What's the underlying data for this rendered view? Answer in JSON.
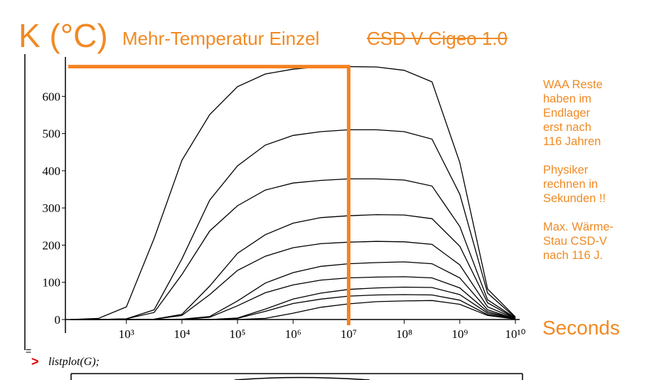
{
  "title": {
    "unit": "K (°C)",
    "main": "Mehr-Temperatur Einzel",
    "struck": "CSD V Cigeo 1.0"
  },
  "notes": [
    [
      "WAA Reste",
      "haben im",
      "Endlager",
      "erst nach",
      "116 Jahren"
    ],
    [
      "Physiker",
      "rechnen in",
      "Sekunden !!"
    ],
    [
      "Max. Wärme-",
      "Stau CSD-V",
      "nach 116 J."
    ]
  ],
  "x_unit": "Seconds",
  "command": {
    "prompt": ">",
    "text": "listplot(G);"
  },
  "chart_data": {
    "type": "line",
    "x_log": true,
    "line_color": "#000000",
    "x": [
      100,
      316.2,
      1000,
      3162,
      10000,
      31623,
      100000,
      316228,
      1000000,
      3162278,
      10000000,
      31622777,
      100000000,
      316227766,
      1000000000,
      3162277660,
      10000000000
    ],
    "series": [
      {
        "values": [
          0,
          3,
          34,
          218,
          428,
          551,
          626,
          660,
          673,
          680,
          680,
          679,
          670,
          639,
          422,
          82,
          7
        ]
      },
      {
        "values": [
          0,
          0,
          2,
          26,
          163,
          321,
          413,
          469,
          495,
          505,
          510,
          510,
          505,
          485,
          337,
          71,
          5
        ]
      },
      {
        "values": [
          0,
          0,
          2,
          19,
          121,
          238,
          306,
          348,
          367,
          374,
          378,
          378,
          375,
          359,
          250,
          53,
          4
        ]
      },
      {
        "values": [
          0,
          0,
          0,
          1,
          14,
          90,
          178,
          228,
          259,
          274,
          279,
          282,
          281,
          271,
          197,
          45,
          3
        ]
      },
      {
        "values": [
          0,
          0,
          0,
          1,
          11,
          67,
          132,
          170,
          193,
          204,
          208,
          210,
          209,
          202,
          147,
          34,
          3
        ]
      },
      {
        "values": [
          0,
          0,
          0,
          0,
          1,
          8,
          50,
          98,
          126,
          143,
          150,
          153,
          155,
          150,
          112,
          26,
          2
        ]
      },
      {
        "values": [
          0,
          0,
          0,
          0,
          0,
          6,
          37,
          72,
          93,
          106,
          112,
          114,
          115,
          112,
          85,
          21,
          2
        ]
      },
      {
        "values": [
          0,
          0,
          0,
          0,
          0,
          0,
          4,
          28,
          55,
          71,
          81,
          85,
          87,
          86,
          67,
          17,
          2
        ]
      },
      {
        "values": [
          0,
          0,
          0,
          0,
          0,
          0,
          3,
          22,
          43,
          55,
          63,
          66,
          67,
          66,
          52,
          13,
          1
        ]
      },
      {
        "values": [
          0,
          0,
          0,
          0,
          0,
          0,
          0,
          3,
          17,
          33,
          42,
          48,
          50,
          51,
          41,
          11,
          1
        ]
      }
    ],
    "xlim": [
      80,
      10000000000
    ],
    "ylim": [
      0,
      683
    ],
    "xticks": [
      {
        "value": 1000,
        "label": "10³"
      },
      {
        "value": 10000,
        "label": "10⁴"
      },
      {
        "value": 100000,
        "label": "10⁵"
      },
      {
        "value": 1000000,
        "label": "10⁶"
      },
      {
        "value": 10000000,
        "label": "10⁷"
      },
      {
        "value": 100000000,
        "label": "10⁸"
      },
      {
        "value": 1000000000,
        "label": "10⁹"
      },
      {
        "value": 10000000000,
        "label": "10¹⁰"
      }
    ],
    "yticks": [
      0,
      100,
      200,
      300,
      400,
      500,
      600
    ],
    "highlight": {
      "x": 10000000,
      "y": 680,
      "color": "#f58220"
    }
  }
}
